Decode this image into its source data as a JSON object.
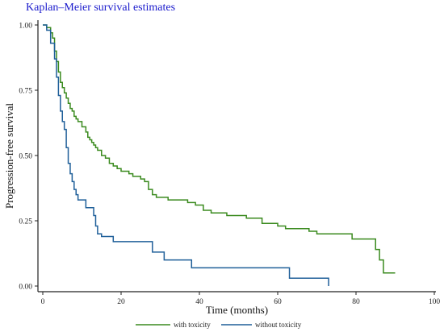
{
  "chart_data": {
    "type": "line",
    "title": "Kaplan–Meier survival estimates",
    "xlabel": "Time (months)",
    "ylabel": "Progression-free survival",
    "xlim": [
      0,
      100
    ],
    "ylim": [
      0,
      1
    ],
    "x_ticks": [
      0,
      20,
      40,
      60,
      80,
      100
    ],
    "y_ticks": [
      0.0,
      0.25,
      0.5,
      0.75,
      1.0
    ],
    "x_tick_labels": [
      "0",
      "20",
      "40",
      "60",
      "80",
      "100"
    ],
    "y_tick_labels": [
      "0.00",
      "0.25",
      "0.50",
      "0.75",
      "1.00"
    ],
    "grid": false,
    "legend_position": "bottom",
    "step": true,
    "series": [
      {
        "name": "with toxicity",
        "color": "#3a8a1e",
        "x": [
          0,
          1,
          2,
          2.5,
          3,
          3.5,
          4,
          4.5,
          5,
          5.5,
          6,
          6.5,
          7,
          7.5,
          8,
          8.5,
          9,
          10,
          11,
          11.5,
          12,
          12.5,
          13,
          13.5,
          14,
          15,
          16,
          17,
          18,
          19,
          20,
          22,
          23,
          25,
          26,
          27,
          28,
          29,
          32,
          35,
          37,
          39,
          41,
          43,
          47,
          52,
          56,
          60,
          62,
          68,
          70,
          79,
          85,
          86,
          87,
          90
        ],
        "y": [
          1.0,
          0.99,
          0.97,
          0.95,
          0.9,
          0.86,
          0.82,
          0.78,
          0.76,
          0.74,
          0.72,
          0.7,
          0.68,
          0.67,
          0.65,
          0.64,
          0.63,
          0.61,
          0.59,
          0.57,
          0.56,
          0.55,
          0.54,
          0.53,
          0.52,
          0.5,
          0.49,
          0.47,
          0.46,
          0.45,
          0.44,
          0.43,
          0.42,
          0.41,
          0.4,
          0.37,
          0.35,
          0.34,
          0.33,
          0.33,
          0.32,
          0.31,
          0.29,
          0.28,
          0.27,
          0.26,
          0.24,
          0.23,
          0.22,
          0.21,
          0.2,
          0.18,
          0.14,
          0.1,
          0.05,
          0.05
        ]
      },
      {
        "name": "without toxicity",
        "color": "#1f5f99",
        "x": [
          0,
          1,
          2,
          3,
          3.5,
          4,
          4.5,
          5,
          5.5,
          6,
          6.5,
          7,
          7.5,
          8,
          8.5,
          9,
          11,
          13,
          13.5,
          14,
          15,
          18,
          28,
          31,
          38,
          63,
          73
        ],
        "y": [
          1.0,
          0.98,
          0.93,
          0.87,
          0.8,
          0.73,
          0.67,
          0.63,
          0.6,
          0.53,
          0.47,
          0.43,
          0.4,
          0.37,
          0.35,
          0.33,
          0.3,
          0.27,
          0.23,
          0.2,
          0.19,
          0.17,
          0.13,
          0.1,
          0.07,
          0.03,
          0.0
        ]
      }
    ]
  }
}
